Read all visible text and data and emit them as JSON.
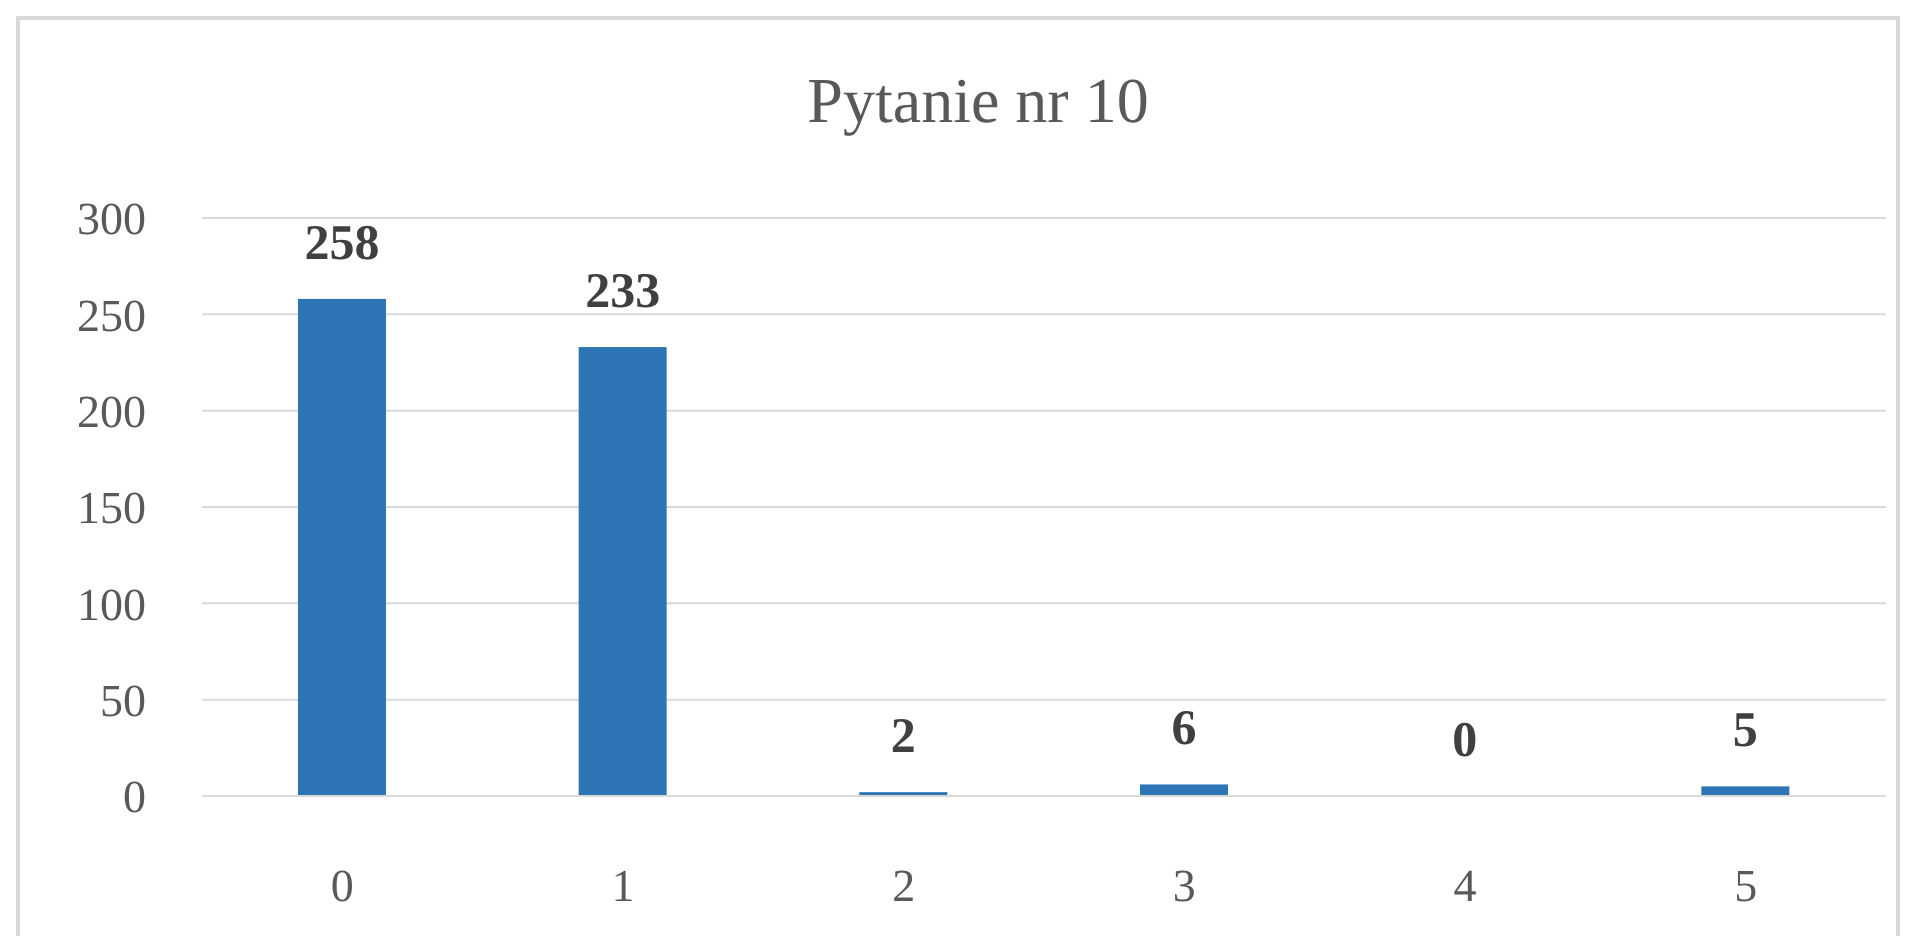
{
  "chart_data": {
    "type": "bar",
    "title": "Pytanie nr 10",
    "categories": [
      "0",
      "1",
      "2",
      "3",
      "4",
      "5"
    ],
    "values": [
      258,
      233,
      2,
      6,
      0,
      5
    ],
    "color": "#2e75b6",
    "ylim": [
      0,
      300
    ],
    "yticks": [
      0,
      50,
      100,
      150,
      200,
      250,
      300
    ],
    "grid": "y",
    "data_labels": true
  }
}
